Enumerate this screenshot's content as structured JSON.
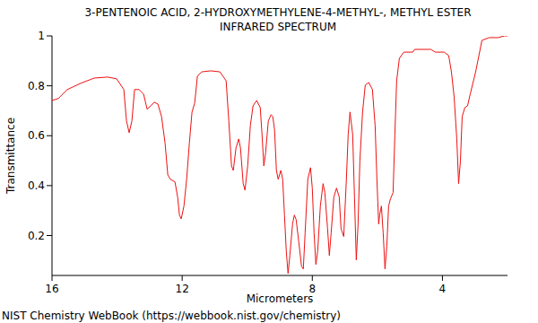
{
  "chart_data": {
    "type": "line",
    "title": "3-PENTENOIC ACID, 2-HYDROXYMETHYLENE-4-METHYL-, METHYL ESTER",
    "subtitle": "INFRARED SPECTRUM",
    "x_label": "Micrometers",
    "y_label": "Transmittance",
    "annotations": [
      "NIST Chemistry WebBook (https://webbook.nist.gov/chemistry)"
    ],
    "color": "#ee1111",
    "xlim": [
      16,
      2
    ],
    "ylim": [
      0.04,
      1
    ],
    "xticks": [
      16,
      12,
      8,
      4
    ],
    "yticks": [
      0.2,
      0.4,
      0.6,
      0.8,
      1
    ],
    "grid": false,
    "x": [
      16.0,
      15.807,
      15.531,
      15.117,
      14.703,
      14.29,
      14.014,
      13.793,
      13.71,
      13.628,
      13.545,
      13.462,
      13.324,
      13.186,
      13.076,
      12.966,
      12.855,
      12.745,
      12.634,
      12.524,
      12.441,
      12.359,
      12.221,
      12.138,
      12.083,
      12.028,
      11.945,
      11.862,
      11.779,
      11.697,
      11.614,
      11.531,
      11.393,
      11.117,
      10.841,
      10.648,
      10.566,
      10.483,
      10.428,
      10.345,
      10.262,
      10.207,
      10.124,
      10.069,
      9.986,
      9.903,
      9.821,
      9.71,
      9.6,
      9.545,
      9.49,
      9.434,
      9.352,
      9.269,
      9.214,
      9.159,
      9.103,
      9.048,
      8.966,
      8.91,
      8.855,
      8.8,
      8.745,
      8.69,
      8.607,
      8.552,
      8.497,
      8.414,
      8.331,
      8.276,
      8.221,
      8.138,
      8.055,
      8.0,
      7.945,
      7.89,
      7.834,
      7.752,
      7.669,
      7.614,
      7.531,
      7.476,
      7.421,
      7.338,
      7.255,
      7.172,
      7.117,
      7.034,
      6.952,
      6.897,
      6.841,
      6.759,
      6.703,
      6.648,
      6.593,
      6.538,
      6.455,
      6.372,
      6.262,
      6.152,
      6.069,
      6.014,
      5.959,
      5.931,
      5.876,
      5.821,
      5.766,
      5.71,
      5.655,
      5.6,
      5.517,
      5.462,
      5.407,
      5.324,
      5.186,
      4.91,
      4.855,
      4.359,
      4.221,
      3.945,
      3.807,
      3.724,
      3.641,
      3.559,
      3.503,
      3.448,
      3.393,
      3.31,
      3.228,
      3.145,
      2.979,
      2.786,
      2.566,
      2.29,
      2.097,
      2.0
    ],
    "values": [
      0.741,
      0.749,
      0.785,
      0.81,
      0.831,
      0.835,
      0.828,
      0.785,
      0.659,
      0.612,
      0.659,
      0.785,
      0.785,
      0.767,
      0.706,
      0.72,
      0.734,
      0.727,
      0.677,
      0.569,
      0.443,
      0.425,
      0.415,
      0.354,
      0.282,
      0.267,
      0.318,
      0.425,
      0.569,
      0.695,
      0.731,
      0.839,
      0.856,
      0.86,
      0.856,
      0.82,
      0.659,
      0.479,
      0.461,
      0.551,
      0.587,
      0.551,
      0.408,
      0.382,
      0.479,
      0.641,
      0.72,
      0.741,
      0.713,
      0.605,
      0.479,
      0.533,
      0.659,
      0.684,
      0.677,
      0.623,
      0.461,
      0.425,
      0.461,
      0.425,
      0.282,
      0.138,
      0.048,
      0.12,
      0.246,
      0.282,
      0.264,
      0.174,
      0.077,
      0.066,
      0.21,
      0.425,
      0.472,
      0.39,
      0.21,
      0.084,
      0.138,
      0.318,
      0.408,
      0.372,
      0.228,
      0.12,
      0.21,
      0.354,
      0.39,
      0.354,
      0.228,
      0.196,
      0.425,
      0.605,
      0.695,
      0.605,
      0.354,
      0.102,
      0.246,
      0.497,
      0.695,
      0.803,
      0.813,
      0.785,
      0.641,
      0.425,
      0.246,
      0.282,
      0.318,
      0.21,
      0.066,
      0.156,
      0.318,
      0.346,
      0.372,
      0.605,
      0.82,
      0.91,
      0.935,
      0.935,
      0.946,
      0.946,
      0.935,
      0.935,
      0.921,
      0.856,
      0.756,
      0.587,
      0.408,
      0.497,
      0.677,
      0.713,
      0.72,
      0.767,
      0.856,
      0.982,
      0.993,
      0.993,
      1.0,
      1.0
    ]
  }
}
